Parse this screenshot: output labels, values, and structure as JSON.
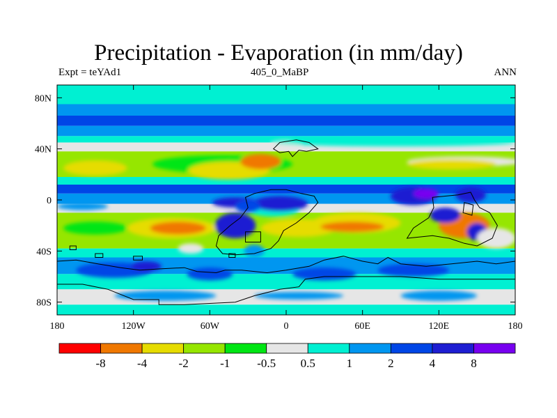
{
  "chart_data": {
    "type": "heatmap",
    "title": "Precipitation - Evaporation (in mm/day)",
    "left_string": "Expt = teYAd1",
    "center_string": "405_0_MaBP",
    "right_string": "ANN",
    "xlim": [
      -180,
      180
    ],
    "ylim": [
      -90,
      90
    ],
    "x_ticks": [
      {
        "value": -180,
        "label": "180"
      },
      {
        "value": -120,
        "label": "120W"
      },
      {
        "value": -60,
        "label": "60W"
      },
      {
        "value": 0,
        "label": "0"
      },
      {
        "value": 60,
        "label": "60E"
      },
      {
        "value": 120,
        "label": "120E"
      },
      {
        "value": 180,
        "label": "180"
      }
    ],
    "y_ticks": [
      {
        "value": 80,
        "label": "80N"
      },
      {
        "value": 40,
        "label": "40N"
      },
      {
        "value": 0,
        "label": "0"
      },
      {
        "value": -40,
        "label": "40S"
      },
      {
        "value": -80,
        "label": "80S"
      }
    ],
    "colorbar": {
      "colors": [
        "#ff0000",
        "#f07800",
        "#e6dc00",
        "#96e600",
        "#00e614",
        "#e6e6e6",
        "#00f0d2",
        "#0096f0",
        "#0046e6",
        "#1e1ed2",
        "#7800f0"
      ],
      "labels": [
        "-8",
        "-4",
        "-2",
        "-1",
        "-0.5",
        "0.5",
        "1",
        "2",
        "4",
        "8"
      ]
    },
    "zonal_bands": [
      {
        "lat": [
          75,
          90
        ],
        "level": 6
      },
      {
        "lat": [
          66,
          75
        ],
        "level": 7
      },
      {
        "lat": [
          58,
          66
        ],
        "level": 8
      },
      {
        "lat": [
          50,
          58
        ],
        "level": 7
      },
      {
        "lat": [
          45,
          50
        ],
        "level": 6
      },
      {
        "lat": [
          38,
          45
        ],
        "level": 5
      },
      {
        "lat": [
          18,
          38
        ],
        "level": 3
      },
      {
        "lat": [
          12,
          18
        ],
        "level": 6
      },
      {
        "lat": [
          5,
          12
        ],
        "level": 8
      },
      {
        "lat": [
          -3,
          5
        ],
        "level": 7
      },
      {
        "lat": [
          -10,
          -3
        ],
        "level": 5
      },
      {
        "lat": [
          -38,
          -10
        ],
        "level": 3
      },
      {
        "lat": [
          -45,
          -38
        ],
        "level": 6
      },
      {
        "lat": [
          -58,
          -45
        ],
        "level": 7
      },
      {
        "lat": [
          -70,
          -58
        ],
        "level": 6
      },
      {
        "lat": [
          -82,
          -70
        ],
        "level": 5
      },
      {
        "lat": [
          -90,
          -82
        ],
        "level": 6
      }
    ],
    "blobs": [
      {
        "cx": 0,
        "cy": 44,
        "rx": 12,
        "ry": 3,
        "level": 5
      },
      {
        "cx": 85,
        "cy": 45,
        "rx": 95,
        "ry": 3,
        "level": 6
      },
      {
        "cx": 140,
        "cy": 30,
        "rx": 45,
        "ry": 4,
        "level": 5
      },
      {
        "cx": -50,
        "cy": 28,
        "rx": 55,
        "ry": 7,
        "level": 4
      },
      {
        "cx": -45,
        "cy": 23,
        "rx": 32,
        "ry": 7,
        "level": 2
      },
      {
        "cx": -20,
        "cy": 30,
        "rx": 16,
        "ry": 6,
        "level": 1
      },
      {
        "cx": 130,
        "cy": 28,
        "rx": 35,
        "ry": 4,
        "level": 2
      },
      {
        "cx": -150,
        "cy": 25,
        "rx": 25,
        "ry": 6,
        "level": 2
      },
      {
        "cx": -10,
        "cy": -8,
        "rx": 20,
        "ry": 5,
        "level": 6
      },
      {
        "cx": -40,
        "cy": -2,
        "rx": 18,
        "ry": 4,
        "level": 9
      },
      {
        "cx": -5,
        "cy": -3,
        "rx": 22,
        "ry": 6,
        "level": 9
      },
      {
        "cx": 100,
        "cy": 3,
        "rx": 18,
        "ry": 7,
        "level": 9
      },
      {
        "cx": 145,
        "cy": 4,
        "rx": 12,
        "ry": 6,
        "level": 9
      },
      {
        "cx": 110,
        "cy": 5,
        "rx": 10,
        "ry": 4,
        "level": 10
      },
      {
        "cx": -160,
        "cy": -5,
        "rx": 20,
        "ry": 3,
        "level": 7
      },
      {
        "cx": -150,
        "cy": -22,
        "rx": 25,
        "ry": 5,
        "level": 4
      },
      {
        "cx": -90,
        "cy": -22,
        "rx": 35,
        "ry": 8,
        "level": 2
      },
      {
        "cx": -85,
        "cy": -22,
        "rx": 22,
        "ry": 5,
        "level": 1
      },
      {
        "cx": -40,
        "cy": -20,
        "rx": 16,
        "ry": 10,
        "level": 9
      },
      {
        "cx": -30,
        "cy": -5,
        "rx": 10,
        "ry": 5,
        "level": 8
      },
      {
        "cx": 10,
        "cy": -22,
        "rx": 30,
        "ry": 7,
        "level": 2
      },
      {
        "cx": 55,
        "cy": -18,
        "rx": 35,
        "ry": 8,
        "level": 2
      },
      {
        "cx": 52,
        "cy": -21,
        "rx": 25,
        "ry": 4,
        "level": 1
      },
      {
        "cx": 140,
        "cy": -20,
        "rx": 20,
        "ry": 10,
        "level": 1
      },
      {
        "cx": 150,
        "cy": -25,
        "rx": 8,
        "ry": 7,
        "level": 9
      },
      {
        "cx": 125,
        "cy": -12,
        "rx": 12,
        "ry": 6,
        "level": 9
      },
      {
        "cx": 165,
        "cy": -30,
        "rx": 15,
        "ry": 8,
        "level": 5
      },
      {
        "cx": -75,
        "cy": -38,
        "rx": 10,
        "ry": 4,
        "level": 5
      },
      {
        "cx": -25,
        "cy": -40,
        "rx": 8,
        "ry": 5,
        "level": 7
      },
      {
        "cx": -135,
        "cy": -55,
        "rx": 30,
        "ry": 6,
        "level": 8
      },
      {
        "cx": -60,
        "cy": -58,
        "rx": 18,
        "ry": 5,
        "level": 8
      },
      {
        "cx": 30,
        "cy": -58,
        "rx": 25,
        "ry": 5,
        "level": 8
      },
      {
        "cx": 100,
        "cy": -55,
        "rx": 28,
        "ry": 5,
        "level": 8
      },
      {
        "cx": -110,
        "cy": -52,
        "rx": 12,
        "ry": 4,
        "level": 9
      },
      {
        "cx": -95,
        "cy": -75,
        "rx": 40,
        "ry": 4,
        "level": 7
      },
      {
        "cx": 10,
        "cy": -75,
        "rx": 35,
        "ry": 3,
        "level": 7
      },
      {
        "cx": 120,
        "cy": -75,
        "rx": 30,
        "ry": 4,
        "level": 7
      }
    ],
    "coastlines": [
      {
        "name": "north-continent",
        "lonlat": [
          [
            -10,
            40
          ],
          [
            -5,
            45
          ],
          [
            8,
            47
          ],
          [
            18,
            45
          ],
          [
            25,
            40
          ],
          [
            16,
            38
          ],
          [
            10,
            39
          ],
          [
            5,
            34
          ],
          [
            2,
            38
          ],
          [
            -5,
            37
          ]
        ]
      },
      {
        "name": "west-continent",
        "lonlat": [
          [
            -20,
            -25
          ],
          [
            -20,
            -33
          ],
          [
            -32,
            -33
          ],
          [
            -32,
            -25
          ]
        ]
      },
      {
        "name": "central-continent",
        "lonlat": [
          [
            -25,
            5
          ],
          [
            -12,
            8
          ],
          [
            0,
            8
          ],
          [
            12,
            5
          ],
          [
            22,
            3
          ],
          [
            25,
            -2
          ],
          [
            18,
            -10
          ],
          [
            8,
            -18
          ],
          [
            -2,
            -24
          ],
          [
            -6,
            -32
          ],
          [
            -12,
            -38
          ],
          [
            -25,
            -42
          ],
          [
            -40,
            -43
          ],
          [
            -50,
            -42
          ],
          [
            -55,
            -36
          ],
          [
            -53,
            -28
          ],
          [
            -44,
            -20
          ],
          [
            -36,
            -14
          ],
          [
            -30,
            -6
          ],
          [
            -32,
            2
          ]
        ]
      },
      {
        "name": "east-continent",
        "lonlat": [
          [
            115,
            2
          ],
          [
            125,
            3
          ],
          [
            135,
            4
          ],
          [
            145,
            6
          ],
          [
            148,
            0
          ],
          [
            152,
            -6
          ],
          [
            160,
            -10
          ],
          [
            166,
            -20
          ],
          [
            162,
            -30
          ],
          [
            150,
            -36
          ],
          [
            140,
            -34
          ],
          [
            128,
            -30
          ],
          [
            115,
            -28
          ],
          [
            95,
            -30
          ],
          [
            100,
            -22
          ],
          [
            112,
            -14
          ],
          [
            116,
            -6
          ]
        ]
      },
      {
        "name": "east-island",
        "lonlat": [
          [
            140,
            -2
          ],
          [
            147,
            -4
          ],
          [
            146,
            -12
          ],
          [
            139,
            -10
          ]
        ]
      },
      {
        "name": "south-landmass",
        "lonlat": [
          [
            -180,
            -48
          ],
          [
            -165,
            -47
          ],
          [
            -148,
            -50
          ],
          [
            -130,
            -53
          ],
          [
            -115,
            -55
          ],
          [
            -100,
            -54
          ],
          [
            -80,
            -53
          ],
          [
            -70,
            -56
          ],
          [
            -55,
            -57
          ],
          [
            -48,
            -55
          ],
          [
            -35,
            -55
          ],
          [
            -15,
            -57
          ],
          [
            0,
            -55
          ],
          [
            18,
            -52
          ],
          [
            30,
            -47
          ],
          [
            45,
            -44
          ],
          [
            60,
            -48
          ],
          [
            72,
            -50
          ],
          [
            80,
            -45
          ],
          [
            90,
            -50
          ],
          [
            110,
            -52
          ],
          [
            130,
            -50
          ],
          [
            150,
            -48
          ],
          [
            165,
            -50
          ],
          [
            180,
            -48
          ],
          [
            180,
            -62
          ],
          [
            160,
            -62
          ],
          [
            120,
            -62
          ],
          [
            90,
            -60
          ],
          [
            60,
            -60
          ],
          [
            30,
            -60
          ],
          [
            15,
            -62
          ],
          [
            10,
            -68
          ],
          [
            -5,
            -70
          ],
          [
            -25,
            -75
          ],
          [
            -40,
            -80
          ],
          [
            -80,
            -82
          ],
          [
            -100,
            -82
          ],
          [
            -100,
            -78
          ],
          [
            -120,
            -78
          ],
          [
            -140,
            -70
          ],
          [
            -160,
            -66
          ],
          [
            -180,
            -66
          ]
        ]
      },
      {
        "name": "small-island-a",
        "lonlat": [
          [
            -170,
            -36
          ],
          [
            -165,
            -36
          ],
          [
            -165,
            -39
          ],
          [
            -170,
            -39
          ]
        ]
      },
      {
        "name": "small-island-b",
        "lonlat": [
          [
            -150,
            -42
          ],
          [
            -144,
            -42
          ],
          [
            -144,
            -45
          ],
          [
            -150,
            -45
          ]
        ]
      },
      {
        "name": "small-island-c",
        "lonlat": [
          [
            -120,
            -44
          ],
          [
            -113,
            -44
          ],
          [
            -113,
            -47
          ],
          [
            -120,
            -47
          ]
        ]
      },
      {
        "name": "small-island-d",
        "lonlat": [
          [
            -45,
            -42
          ],
          [
            -40,
            -42
          ],
          [
            -40,
            -45
          ],
          [
            -45,
            -45
          ]
        ]
      }
    ]
  }
}
